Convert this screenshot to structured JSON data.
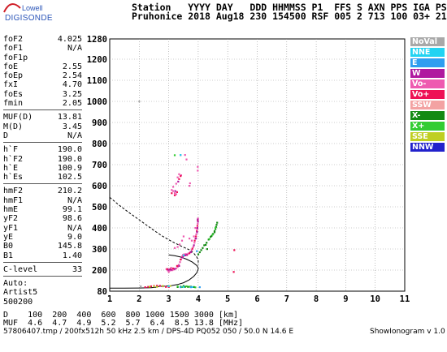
{
  "logo": {
    "line1": "Lowell",
    "line2": "DIGISONDE"
  },
  "header": {
    "line1": "Station   YYYY DAY   DDD HHMMSS P1  FFS S AXN PPS IGA PS",
    "line2": "Pruhonice 2018 Aug18 230 154500 RSF 005 2 713 100 03+ 21"
  },
  "params": {
    "group1": [
      {
        "name": "foF2",
        "value": "4.025"
      },
      {
        "name": "foF1",
        "value": "N/A"
      },
      {
        "name": "foF1p",
        "value": ""
      },
      {
        "name": "foE",
        "value": "2.55"
      },
      {
        "name": "foEp",
        "value": "2.54"
      },
      {
        "name": "fxI",
        "value": "4.70"
      },
      {
        "name": "foEs",
        "value": "3.25"
      },
      {
        "name": "fmin",
        "value": "2.05"
      }
    ],
    "group2": [
      {
        "name": "MUF(D)",
        "value": "13.81"
      },
      {
        "name": "M(D)",
        "value": "3.45"
      },
      {
        "name": "D",
        "value": "N/A"
      }
    ],
    "group3": [
      {
        "name": "h`F",
        "value": "190.0"
      },
      {
        "name": "h`F2",
        "value": "190.0"
      },
      {
        "name": "h`E",
        "value": "100.9"
      },
      {
        "name": "h`Es",
        "value": "102.5"
      }
    ],
    "group4": [
      {
        "name": "hmF2",
        "value": "210.2"
      },
      {
        "name": "hmF1",
        "value": "N/A"
      },
      {
        "name": "hmE",
        "value": "99.1"
      },
      {
        "name": "yF2",
        "value": "98.6"
      },
      {
        "name": "yF1",
        "value": "N/A"
      },
      {
        "name": "yE",
        "value": "9.0"
      },
      {
        "name": "B0",
        "value": "145.8"
      },
      {
        "name": "B1",
        "value": "1.40"
      }
    ],
    "clevel": {
      "name": "C-level",
      "value": "33"
    },
    "auto": [
      "Auto:",
      "Artist5",
      "500200"
    ]
  },
  "legend": [
    {
      "label": "NoVal",
      "color": "#a8a8a8"
    },
    {
      "label": "NNE",
      "color": "#22d3f2"
    },
    {
      "label": "E",
      "color": "#2f9ef0"
    },
    {
      "label": "W",
      "color": "#b0199f"
    },
    {
      "label": "Vo-",
      "color": "#ee5ab0"
    },
    {
      "label": "Vo+",
      "color": "#ee1155"
    },
    {
      "label": "SSW",
      "color": "#f3a2a2"
    },
    {
      "label": "X-",
      "color": "#138a13"
    },
    {
      "label": "X+",
      "color": "#33cc33"
    },
    {
      "label": "SSE",
      "color": "#bfcf22"
    },
    {
      "label": "NNW",
      "color": "#2222cc"
    }
  ],
  "footer": {
    "line1": "D    100  200  400  600  800 1000 1500 3000 [km]",
    "line2": "MUF  4.6  4.7  4.9  5.2  5.7  6.4  8.5 13.8 [MHz]",
    "line3": "57806407.tmp / 200fx512h 50 kHz 2.5 km / DPS-4D PQ052 050 / 50.0 N 14.6 E",
    "right": "ShowIonogram v 1.0"
  },
  "chart_data": {
    "type": "scatter",
    "xlim": [
      1,
      11
    ],
    "ylim": [
      80,
      1280
    ],
    "x_ticks": [
      "1",
      "2",
      "3",
      "4",
      "5",
      "6",
      "7",
      "8",
      "9",
      "10",
      "11"
    ],
    "y_ticks": [
      "80",
      "200",
      "300",
      "400",
      "500",
      "600",
      "700",
      "800",
      "900",
      "1000",
      "1100",
      "1200",
      "1280"
    ],
    "grid": true,
    "series": [
      {
        "name": "Vo-",
        "color": "#ee5ab0",
        "points": [
          [
            2.98,
            198
          ],
          [
            3.05,
            198
          ],
          [
            3.12,
            200
          ],
          [
            3.18,
            203
          ],
          [
            3.25,
            208
          ],
          [
            3.3,
            215
          ],
          [
            3.34,
            225
          ],
          [
            3.38,
            238
          ],
          [
            3.42,
            252
          ],
          [
            3.45,
            265
          ],
          [
            3.48,
            272
          ],
          [
            3.52,
            275
          ],
          [
            3.58,
            276
          ],
          [
            3.65,
            278
          ],
          [
            3.72,
            285
          ],
          [
            3.78,
            295
          ],
          [
            3.83,
            310
          ],
          [
            3.87,
            330
          ],
          [
            3.9,
            350
          ],
          [
            3.93,
            370
          ],
          [
            3.96,
            395
          ],
          [
            3.98,
            420
          ],
          [
            3.99,
            445
          ],
          [
            3.1,
            580
          ],
          [
            3.15,
            575
          ],
          [
            3.2,
            565
          ],
          [
            3.25,
            560
          ],
          [
            3.15,
            595
          ],
          [
            3.25,
            610
          ],
          [
            3.3,
            640
          ],
          [
            3.35,
            655
          ],
          [
            3.42,
            650
          ],
          [
            3.7,
            600
          ],
          [
            3.72,
            612
          ],
          [
            3.98,
            672
          ],
          [
            3.98,
            690
          ],
          [
            3.6,
            725
          ],
          [
            3.4,
            745
          ],
          [
            3.55,
            746
          ],
          [
            3.0,
            190
          ],
          [
            3.2,
            305
          ],
          [
            3.3,
            310
          ],
          [
            3.37,
            322
          ],
          [
            3.45,
            340
          ],
          [
            3.5,
            360
          ],
          [
            2.92,
            205
          ],
          [
            2.96,
            200
          ],
          [
            3.08,
            211
          ],
          [
            3.7,
            350
          ],
          [
            3.78,
            340
          ],
          [
            3.85,
            360
          ],
          [
            3.9,
            400
          ]
        ]
      },
      {
        "name": "Vo+",
        "color": "#ee1155",
        "points": [
          [
            2.95,
            205
          ],
          [
            3.05,
            205
          ],
          [
            3.15,
            208
          ],
          [
            3.28,
            220
          ],
          [
            3.4,
            250
          ],
          [
            3.5,
            268
          ],
          [
            3.62,
            272
          ],
          [
            3.7,
            280
          ],
          [
            3.8,
            302
          ],
          [
            3.88,
            340
          ],
          [
            3.92,
            360
          ],
          [
            3.95,
            385
          ],
          [
            3.97,
            410
          ],
          [
            3.98,
            436
          ],
          [
            3.1,
            565
          ],
          [
            3.2,
            555
          ],
          [
            3.28,
            570
          ],
          [
            3.35,
            632
          ],
          [
            3.4,
            646
          ],
          [
            2.3,
            105
          ],
          [
            2.4,
            108
          ],
          [
            2.5,
            110
          ],
          [
            2.6,
            112
          ],
          [
            2.7,
            111
          ],
          [
            2.8,
            108
          ],
          [
            2.9,
            105
          ],
          [
            3.0,
            104
          ],
          [
            2.2,
            103
          ],
          [
            5.22,
            295
          ],
          [
            5.2,
            190
          ]
        ]
      },
      {
        "name": "W",
        "color": "#b0199f",
        "points": [
          [
            3.0,
            202
          ],
          [
            3.08,
            202
          ],
          [
            3.2,
            206
          ],
          [
            3.35,
            220
          ],
          [
            3.47,
            260
          ],
          [
            3.55,
            270
          ],
          [
            3.6,
            272
          ],
          [
            3.75,
            285
          ],
          [
            3.85,
            318
          ],
          [
            3.92,
            350
          ],
          [
            3.96,
            380
          ],
          [
            3.97,
            400
          ],
          [
            3.99,
            430
          ],
          [
            3.98,
            440
          ],
          [
            3.22,
            575
          ],
          [
            3.32,
            620
          ]
        ]
      },
      {
        "name": "X-",
        "color": "#138a13",
        "points": [
          [
            4.0,
            275
          ],
          [
            4.05,
            285
          ],
          [
            4.1,
            295
          ],
          [
            4.15,
            305
          ],
          [
            4.2,
            318
          ],
          [
            4.28,
            330
          ],
          [
            4.35,
            345
          ],
          [
            4.42,
            358
          ],
          [
            4.5,
            372
          ],
          [
            4.55,
            385
          ],
          [
            4.58,
            395
          ],
          [
            4.6,
            405
          ],
          [
            4.62,
            415
          ],
          [
            4.64,
            425
          ],
          [
            3.55,
            105
          ],
          [
            3.65,
            105
          ],
          [
            3.75,
            106
          ],
          [
            3.85,
            104
          ],
          [
            3.3,
            104
          ],
          [
            3.4,
            106
          ],
          [
            3.5,
            110
          ],
          [
            4.25,
            320
          ],
          [
            4.45,
            362
          ],
          [
            4.3,
            300
          ],
          [
            4.55,
            380
          ]
        ]
      },
      {
        "name": "X+",
        "color": "#33cc33",
        "points": [
          [
            4.38,
            348
          ],
          [
            4.48,
            368
          ],
          [
            4.58,
            400
          ],
          [
            3.6,
            108
          ],
          [
            3.7,
            106
          ],
          [
            3.45,
            104
          ],
          [
            3.2,
            745
          ],
          [
            3.3,
            108
          ],
          [
            3.9,
            102
          ]
        ]
      },
      {
        "name": "SSE",
        "color": "#bfcf22",
        "points": [
          [
            2.5,
            107
          ],
          [
            2.6,
            105
          ],
          [
            2.8,
            110
          ],
          [
            3.05,
            110
          ],
          [
            2.35,
            106
          ]
        ]
      },
      {
        "name": "NNE",
        "color": "#22d3f2",
        "points": [
          [
            3.4,
            746
          ],
          [
            3.5,
            105
          ],
          [
            3.8,
            104
          ],
          [
            3.5,
            270
          ],
          [
            3.0,
            108
          ]
        ]
      },
      {
        "name": "E",
        "color": "#2f9ef0",
        "points": [
          [
            3.75,
            103
          ],
          [
            3.4,
            103
          ],
          [
            4.05,
            103
          ],
          [
            3.95,
            290
          ]
        ]
      },
      {
        "name": "NoVal",
        "color": "#a8a8a8",
        "points": [
          [
            2.0,
            1000
          ],
          [
            2.05,
            108
          ]
        ]
      }
    ],
    "lines": [
      {
        "name": "profile",
        "dash": false,
        "points": [
          [
            1.0,
            97
          ],
          [
            1.5,
            97
          ],
          [
            2.0,
            98
          ],
          [
            2.4,
            100
          ],
          [
            2.55,
            102
          ],
          [
            2.6,
            105
          ],
          [
            2.7,
            107
          ],
          [
            2.9,
            109
          ],
          [
            3.1,
            112
          ],
          [
            3.3,
            118
          ],
          [
            3.5,
            128
          ],
          [
            3.7,
            145
          ],
          [
            3.85,
            165
          ],
          [
            3.95,
            185
          ],
          [
            4.0,
            205
          ],
          [
            4.0,
            210
          ],
          [
            3.95,
            222
          ],
          [
            3.8,
            238
          ],
          [
            3.6,
            252
          ],
          [
            3.4,
            262
          ],
          [
            3.2,
            268
          ],
          [
            3.0,
            272
          ]
        ]
      },
      {
        "name": "model-trace",
        "dash": true,
        "points": [
          [
            1.0,
            545
          ],
          [
            1.3,
            510
          ],
          [
            1.6,
            478
          ],
          [
            1.9,
            448
          ],
          [
            2.2,
            418
          ],
          [
            2.5,
            388
          ],
          [
            2.8,
            360
          ],
          [
            3.1,
            336
          ],
          [
            3.4,
            315
          ],
          [
            3.7,
            296
          ],
          [
            3.85,
            280
          ],
          [
            3.95,
            262
          ],
          [
            4.0,
            248
          ],
          [
            4.0,
            225
          ]
        ]
      }
    ]
  }
}
